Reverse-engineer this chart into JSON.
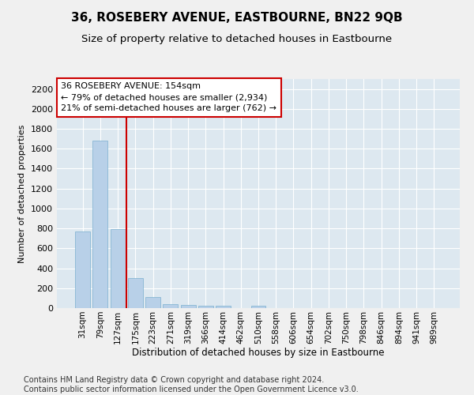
{
  "title": "36, ROSEBERY AVENUE, EASTBOURNE, BN22 9QB",
  "subtitle": "Size of property relative to detached houses in Eastbourne",
  "xlabel": "Distribution of detached houses by size in Eastbourne",
  "ylabel": "Number of detached properties",
  "categories": [
    "31sqm",
    "79sqm",
    "127sqm",
    "175sqm",
    "223sqm",
    "271sqm",
    "319sqm",
    "366sqm",
    "414sqm",
    "462sqm",
    "510sqm",
    "558sqm",
    "606sqm",
    "654sqm",
    "702sqm",
    "750sqm",
    "798sqm",
    "846sqm",
    "894sqm",
    "941sqm",
    "989sqm"
  ],
  "values": [
    770,
    1680,
    795,
    305,
    110,
    42,
    32,
    25,
    22,
    0,
    20,
    0,
    0,
    0,
    0,
    0,
    0,
    0,
    0,
    0,
    0
  ],
  "bar_color": "#b8d0e8",
  "bar_edge_color": "#7aafcf",
  "vline_color": "#cc0000",
  "annotation_line1": "36 ROSEBERY AVENUE: 154sqm",
  "annotation_line2": "← 79% of detached houses are smaller (2,934)",
  "annotation_line3": "21% of semi-detached houses are larger (762) →",
  "annotation_box_color": "#ffffff",
  "annotation_box_edge": "#cc0000",
  "bg_color": "#dde8f0",
  "grid_color": "#ffffff",
  "fig_bg_color": "#f0f0f0",
  "ylim": [
    0,
    2300
  ],
  "yticks": [
    0,
    200,
    400,
    600,
    800,
    1000,
    1200,
    1400,
    1600,
    1800,
    2000,
    2200
  ],
  "footer": "Contains HM Land Registry data © Crown copyright and database right 2024.\nContains public sector information licensed under the Open Government Licence v3.0.",
  "title_fontsize": 11,
  "subtitle_fontsize": 9.5,
  "ylabel_fontsize": 8,
  "xlabel_fontsize": 8.5,
  "tick_fontsize": 7.5,
  "footer_fontsize": 7,
  "annotation_fontsize": 8
}
